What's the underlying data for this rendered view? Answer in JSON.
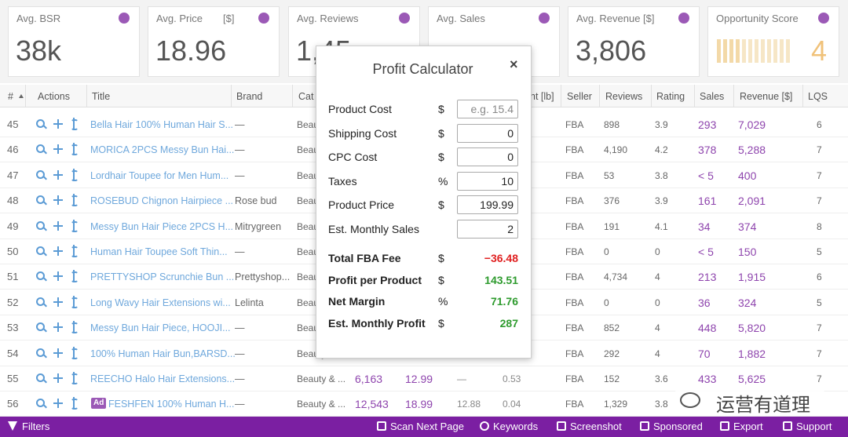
{
  "metrics": [
    {
      "label": "Avg. BSR",
      "value": "38k"
    },
    {
      "label": "Avg. Price",
      "unit": "[$]",
      "value": "18.96"
    },
    {
      "label": "Avg. Reviews",
      "value": "1,45"
    },
    {
      "label": "Avg. Sales"
    },
    {
      "label": "Avg. Revenue",
      "unit": "[$]",
      "value": "3,806"
    },
    {
      "label": "Opportunity Score",
      "value": "4"
    }
  ],
  "table": {
    "header": [
      "#",
      "Actions",
      "Title",
      "Brand",
      "Cat",
      "ht [lb]",
      "Seller",
      "Reviews",
      "Rating",
      "Sales",
      "Revenue [$]",
      "LQS"
    ],
    "rows": [
      {
        "num": "45",
        "title": "Bella Hair 100% Human Hair S...",
        "brand": "—",
        "category": "Beauty & ...",
        "seller": "FBA",
        "reviews": "898",
        "rating": "3.9",
        "sales": "293",
        "revenue": "7,029",
        "lqs": "6"
      },
      {
        "num": "46",
        "title": "MORICA 2PCS Messy Bun Hai...",
        "brand": "—",
        "category": "Beauty & ...",
        "seller": "FBA",
        "reviews": "4,190",
        "rating": "4.2",
        "sales": "378",
        "revenue": "5,288",
        "lqs": "7"
      },
      {
        "num": "47",
        "title": "Lordhair Toupee for Men Hum...",
        "brand": "—",
        "category": "Beauty & ...",
        "seller": "FBA",
        "reviews": "53",
        "rating": "3.8",
        "sales": "< 5",
        "revenue": "400",
        "lqs": "7"
      },
      {
        "num": "48",
        "title": "ROSEBUD Chignon Hairpiece ...",
        "brand": "Rose bud",
        "category": "Beauty & ...",
        "seller": "FBA",
        "reviews": "376",
        "rating": "3.9",
        "sales": "161",
        "revenue": "2,091",
        "lqs": "7"
      },
      {
        "num": "49",
        "title": "Messy Bun Hair Piece 2PCS H...",
        "brand": "Mitrygreen",
        "category": "Beauty & ...",
        "seller": "FBA",
        "reviews": "191",
        "rating": "4.1",
        "sales": "34",
        "revenue": "374",
        "lqs": "8"
      },
      {
        "num": "50",
        "title": "Human Hair Toupee Soft Thin...",
        "brand": "—",
        "category": "Beauty & ...",
        "seller": "FBA",
        "reviews": "0",
        "rating": "0",
        "sales": "< 5",
        "revenue": "150",
        "lqs": "5"
      },
      {
        "num": "51",
        "title": "PRETTYSHOP Scrunchie Bun ...",
        "brand": "Prettyshop...",
        "category": "Beauty & ...",
        "seller": "FBA",
        "reviews": "4,734",
        "rating": "4",
        "sales": "213",
        "revenue": "1,915",
        "lqs": "6"
      },
      {
        "num": "52",
        "title": "Long Wavy Hair Extensions wi...",
        "brand": "Lelinta",
        "category": "Beauty & ...",
        "seller": "FBA",
        "reviews": "0",
        "rating": "0",
        "sales": "36",
        "revenue": "324",
        "lqs": "5"
      },
      {
        "num": "53",
        "title": "Messy Bun Hair Piece, HOOJI...",
        "brand": "—",
        "category": "Beauty & ...",
        "seller": "FBA",
        "reviews": "852",
        "rating": "4",
        "sales": "448",
        "revenue": "5,820",
        "lqs": "7"
      },
      {
        "num": "54",
        "title": "100% Human Hair Bun,BARSD...",
        "brand": "—",
        "category": "Beauty & ...",
        "seller": "FBA",
        "reviews": "292",
        "rating": "4",
        "sales": "70",
        "revenue": "1,882",
        "lqs": "7"
      },
      {
        "num": "55",
        "title": "REECHO Halo Hair Extensions...",
        "brand": "—",
        "category": "Beauty & ...",
        "bsr": "6,163",
        "price": "12.99",
        "fees": "—",
        "weight": "0.53",
        "seller": "FBA",
        "reviews": "152",
        "rating": "3.6",
        "sales": "433",
        "revenue": "5,625",
        "lqs": "7"
      },
      {
        "num": "56",
        "badge": "Ad",
        "title": "FESHFEN 100% Human H...",
        "brand": "—",
        "category": "Beauty & ...",
        "bsr": "12,543",
        "price": "18.99",
        "fees": "12.88",
        "weight": "0.04",
        "seller": "FBA",
        "reviews": "1,329",
        "rating": "3.8"
      }
    ]
  },
  "calculator": {
    "title": "Profit Calculator",
    "close": "×",
    "inputs": [
      {
        "label": "Product Cost",
        "unit": "$",
        "placeholder": "e.g. 15.4"
      },
      {
        "label": "Shipping Cost",
        "unit": "$",
        "value": "0"
      },
      {
        "label": "CPC Cost",
        "unit": "$",
        "value": "0"
      },
      {
        "label": "Taxes",
        "unit": "%",
        "value": "10"
      },
      {
        "label": "Product Price",
        "unit": "$",
        "value": "199.99"
      },
      {
        "label": "Est. Monthly Sales",
        "value": "2"
      }
    ],
    "results": [
      {
        "label": "Total FBA Fee",
        "unit": "$",
        "value": "−36.48",
        "color": "#e02020"
      },
      {
        "label": "Profit per Product",
        "unit": "$",
        "value": "143.51",
        "color": "#2e9b2e"
      },
      {
        "label": "Net Margin",
        "unit": "%",
        "value": "71.76",
        "color": "#2e9b2e"
      },
      {
        "label": "Est. Monthly Profit",
        "unit": "$",
        "value": "287",
        "color": "#2e9b2e"
      }
    ]
  },
  "toolbar": {
    "left": "Filters",
    "items": [
      "Scan Next Page",
      "Keywords",
      "Screenshot",
      "Sponsored",
      "Export",
      "Support"
    ]
  },
  "watermark": "运营有道理"
}
